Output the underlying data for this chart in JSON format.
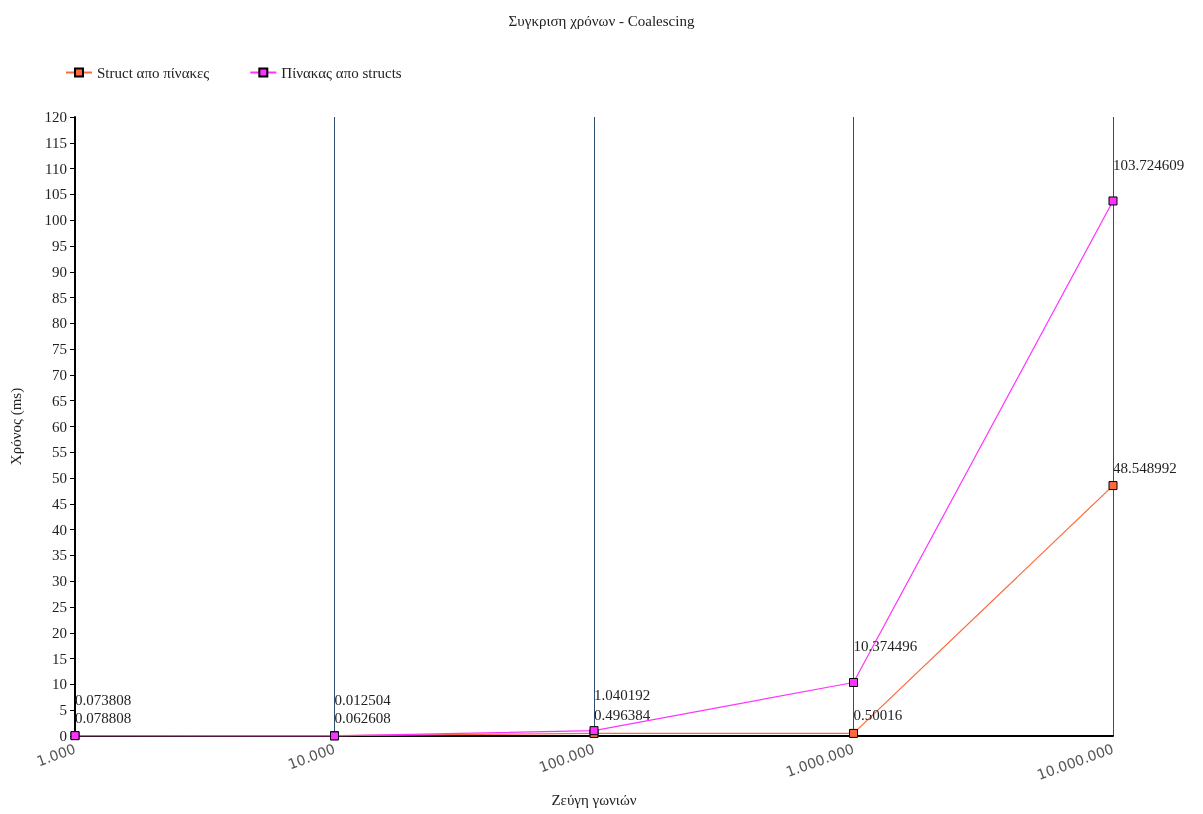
{
  "chart_data": {
    "type": "line",
    "title": "Συγκριση χρόνων - Coalescing",
    "xlabel": "Ζεύγη γωνιών",
    "ylabel": "Χρόνος (ms)",
    "categories": [
      "1.000",
      "10.000",
      "100.000",
      "1.000.000",
      "10.000.000"
    ],
    "series": [
      {
        "name": "Struct απο πίνακες",
        "color": "#ff6a3d",
        "values": [
          0.078808,
          0.062608,
          0.496384,
          0.50016,
          48.548992
        ]
      },
      {
        "name": "Πίνακας απο structs",
        "color": "#ff33ff",
        "values": [
          0.073808,
          0.012504,
          1.040192,
          10.374496,
          103.724609
        ]
      }
    ],
    "ylim": [
      0,
      120
    ],
    "yticks": [
      0,
      5,
      10,
      15,
      20,
      25,
      30,
      35,
      40,
      45,
      50,
      55,
      60,
      65,
      70,
      75,
      80,
      85,
      90,
      95,
      100,
      105,
      110,
      115,
      120
    ],
    "grid": "x",
    "legend": "top left",
    "marker": "square",
    "line_style": "solid",
    "data_labels": true
  }
}
